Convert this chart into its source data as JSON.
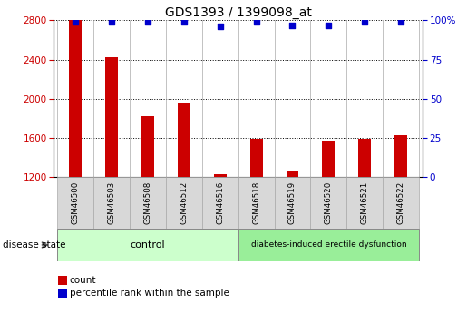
{
  "title": "GDS1393 / 1399098_at",
  "samples": [
    "GSM46500",
    "GSM46503",
    "GSM46508",
    "GSM46512",
    "GSM46516",
    "GSM46518",
    "GSM46519",
    "GSM46520",
    "GSM46521",
    "GSM46522"
  ],
  "counts": [
    2800,
    2420,
    1820,
    1960,
    1230,
    1590,
    1260,
    1570,
    1590,
    1630
  ],
  "percentiles": [
    99,
    99,
    99,
    99,
    96,
    99,
    97,
    97,
    99,
    99
  ],
  "bar_color": "#cc0000",
  "dot_color": "#0000cc",
  "ylim_left": [
    1200,
    2800
  ],
  "ylim_right": [
    0,
    100
  ],
  "yticks_left": [
    1200,
    1600,
    2000,
    2400,
    2800
  ],
  "yticks_right": [
    0,
    25,
    50,
    75,
    100
  ],
  "control_count": 5,
  "disease_count": 5,
  "control_label": "control",
  "disease_label": "diabetes-induced erectile dysfunction",
  "control_bg": "#ccffcc",
  "disease_bg": "#99ee99",
  "sample_bg": "#d8d8d8",
  "legend_count_label": "count",
  "legend_pct_label": "percentile rank within the sample",
  "disease_state_label": "disease state",
  "title_fontsize": 10,
  "tick_fontsize": 7.5,
  "bar_width": 0.35
}
